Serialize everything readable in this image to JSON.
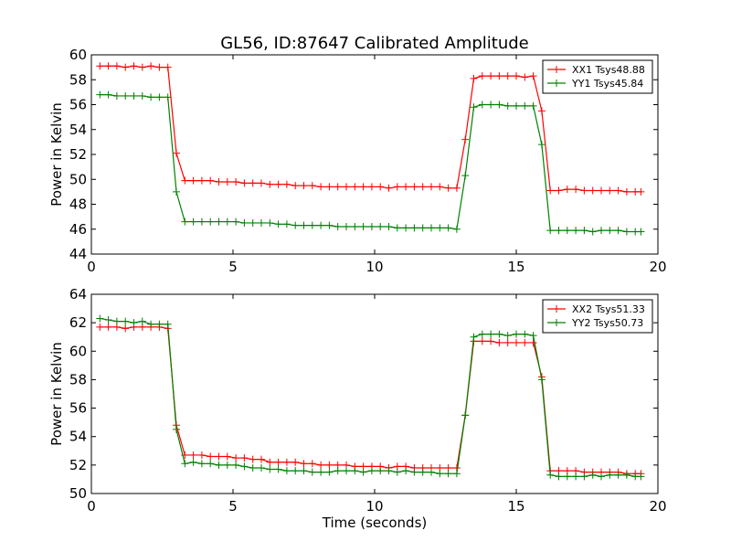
{
  "figure": {
    "title": "GL56, ID:87647 Calibrated Amplitude",
    "xlabel": "Time (seconds)"
  },
  "chart_data": [
    {
      "type": "line",
      "title": "GL56, ID:87647 Calibrated Amplitude",
      "xlabel": "",
      "ylabel": "Power in Kelvin",
      "xlim": [
        0,
        20
      ],
      "ylim": [
        44,
        60
      ],
      "x_ticks": [
        0,
        5,
        10,
        15,
        20
      ],
      "y_ticks": [
        44,
        46,
        48,
        50,
        52,
        54,
        56,
        58,
        60
      ],
      "grid": false,
      "legend_position": "top-right",
      "x": [
        0.3,
        0.6,
        0.9,
        1.2,
        1.5,
        1.8,
        2.1,
        2.4,
        2.7,
        3.0,
        3.3,
        3.6,
        3.9,
        4.2,
        4.5,
        4.8,
        5.1,
        5.4,
        5.7,
        6.0,
        6.3,
        6.6,
        6.9,
        7.2,
        7.5,
        7.8,
        8.1,
        8.4,
        8.7,
        9.0,
        9.3,
        9.6,
        9.9,
        10.2,
        10.5,
        10.8,
        11.1,
        11.4,
        11.7,
        12.0,
        12.3,
        12.6,
        12.9,
        13.2,
        13.5,
        13.8,
        14.1,
        14.4,
        14.7,
        15.0,
        15.3,
        15.6,
        15.9,
        16.2,
        16.5,
        16.8,
        17.1,
        17.4,
        17.7,
        18.0,
        18.3,
        18.6,
        18.9,
        19.2,
        19.4
      ],
      "series": [
        {
          "name": "XX1 Tsys48.88",
          "color": "#ff0000",
          "values": [
            59.1,
            59.1,
            59.1,
            59.0,
            59.1,
            59.0,
            59.1,
            59.0,
            59.0,
            52.1,
            49.9,
            49.9,
            49.9,
            49.9,
            49.8,
            49.8,
            49.8,
            49.7,
            49.7,
            49.7,
            49.6,
            49.6,
            49.6,
            49.5,
            49.5,
            49.5,
            49.4,
            49.4,
            49.4,
            49.4,
            49.4,
            49.4,
            49.4,
            49.4,
            49.3,
            49.4,
            49.4,
            49.4,
            49.4,
            49.4,
            49.4,
            49.3,
            49.3,
            53.2,
            58.1,
            58.3,
            58.3,
            58.3,
            58.3,
            58.3,
            58.2,
            58.3,
            55.5,
            49.1,
            49.1,
            49.2,
            49.2,
            49.1,
            49.1,
            49.1,
            49.1,
            49.1,
            49.0,
            49.0,
            49.0
          ]
        },
        {
          "name": "YY1 Tsys45.84",
          "color": "#008000",
          "values": [
            56.8,
            56.8,
            56.7,
            56.7,
            56.7,
            56.7,
            56.6,
            56.6,
            56.6,
            49.0,
            46.6,
            46.6,
            46.6,
            46.6,
            46.6,
            46.6,
            46.6,
            46.5,
            46.5,
            46.5,
            46.5,
            46.4,
            46.4,
            46.3,
            46.3,
            46.3,
            46.3,
            46.3,
            46.2,
            46.2,
            46.2,
            46.2,
            46.2,
            46.2,
            46.2,
            46.1,
            46.1,
            46.1,
            46.1,
            46.1,
            46.1,
            46.1,
            46.0,
            50.3,
            55.8,
            56.0,
            56.0,
            56.0,
            55.9,
            55.9,
            55.9,
            55.9,
            52.8,
            45.9,
            45.9,
            45.9,
            45.9,
            45.9,
            45.8,
            45.9,
            45.9,
            45.9,
            45.8,
            45.8,
            45.8
          ]
        }
      ]
    },
    {
      "type": "line",
      "title": "",
      "xlabel": "Time (seconds)",
      "ylabel": "Power in Kelvin",
      "xlim": [
        0,
        20
      ],
      "ylim": [
        50,
        64
      ],
      "x_ticks": [
        0,
        5,
        10,
        15,
        20
      ],
      "y_ticks": [
        50,
        52,
        54,
        56,
        58,
        60,
        62,
        64
      ],
      "grid": false,
      "legend_position": "top-right",
      "x": [
        0.3,
        0.6,
        0.9,
        1.2,
        1.5,
        1.8,
        2.1,
        2.4,
        2.7,
        3.0,
        3.3,
        3.6,
        3.9,
        4.2,
        4.5,
        4.8,
        5.1,
        5.4,
        5.7,
        6.0,
        6.3,
        6.6,
        6.9,
        7.2,
        7.5,
        7.8,
        8.1,
        8.4,
        8.7,
        9.0,
        9.3,
        9.6,
        9.9,
        10.2,
        10.5,
        10.8,
        11.1,
        11.4,
        11.7,
        12.0,
        12.3,
        12.6,
        12.9,
        13.2,
        13.5,
        13.8,
        14.1,
        14.4,
        14.7,
        15.0,
        15.3,
        15.6,
        15.9,
        16.2,
        16.5,
        16.8,
        17.1,
        17.4,
        17.7,
        18.0,
        18.3,
        18.6,
        18.9,
        19.2,
        19.4
      ],
      "series": [
        {
          "name": "XX2 Tsys51.33",
          "color": "#ff0000",
          "values": [
            61.7,
            61.7,
            61.7,
            61.6,
            61.7,
            61.7,
            61.7,
            61.7,
            61.6,
            54.8,
            52.7,
            52.7,
            52.7,
            52.6,
            52.6,
            52.6,
            52.5,
            52.5,
            52.4,
            52.4,
            52.2,
            52.2,
            52.2,
            52.2,
            52.1,
            52.1,
            52.0,
            52.0,
            52.0,
            52.0,
            51.9,
            51.9,
            51.9,
            51.9,
            51.8,
            51.9,
            51.9,
            51.8,
            51.8,
            51.8,
            51.8,
            51.8,
            51.8,
            55.5,
            60.7,
            60.7,
            60.7,
            60.6,
            60.6,
            60.6,
            60.6,
            60.6,
            58.2,
            51.6,
            51.6,
            51.6,
            51.6,
            51.5,
            51.5,
            51.5,
            51.5,
            51.5,
            51.4,
            51.4,
            51.4
          ]
        },
        {
          "name": "YY2 Tsys50.73",
          "color": "#008000",
          "values": [
            62.3,
            62.2,
            62.1,
            62.1,
            62.0,
            62.1,
            61.9,
            61.9,
            61.9,
            54.5,
            52.1,
            52.2,
            52.1,
            52.1,
            52.0,
            52.0,
            52.0,
            51.9,
            51.8,
            51.8,
            51.7,
            51.7,
            51.6,
            51.6,
            51.6,
            51.5,
            51.5,
            51.5,
            51.6,
            51.6,
            51.6,
            51.5,
            51.6,
            51.6,
            51.6,
            51.5,
            51.6,
            51.5,
            51.5,
            51.5,
            51.4,
            51.4,
            51.4,
            55.5,
            61.0,
            61.2,
            61.2,
            61.2,
            61.1,
            61.2,
            61.2,
            61.1,
            58.0,
            51.3,
            51.2,
            51.2,
            51.2,
            51.2,
            51.3,
            51.2,
            51.3,
            51.3,
            51.3,
            51.2,
            51.2
          ]
        }
      ]
    }
  ]
}
